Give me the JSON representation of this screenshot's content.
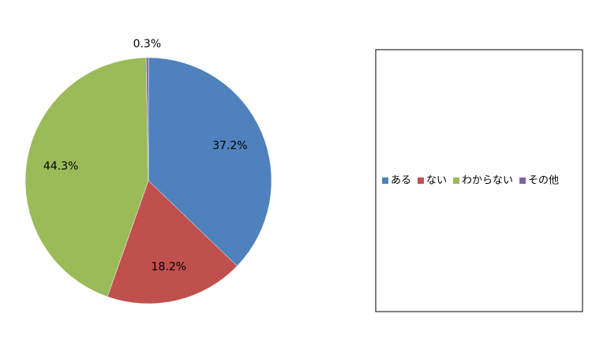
{
  "chart_data": {
    "type": "pie",
    "categories": [
      "ある",
      "ない",
      "わからない",
      "その他"
    ],
    "values": [
      37.2,
      18.2,
      44.3,
      0.3
    ],
    "value_labels": [
      "37.2%",
      "18.2%",
      "44.3%",
      "0.3%"
    ],
    "colors": [
      "#4f81bd",
      "#c0504d",
      "#9bbb59",
      "#8064a2"
    ],
    "legend": "right"
  }
}
